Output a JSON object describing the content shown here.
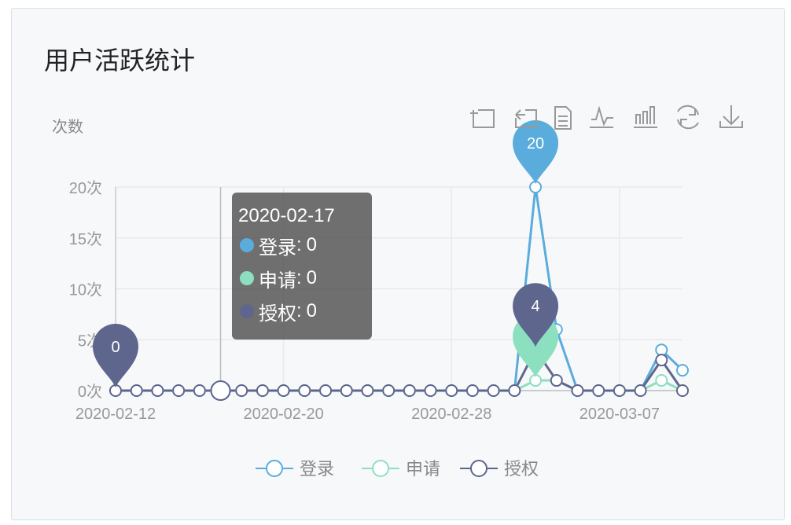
{
  "card": {
    "title": "用户活跃统计"
  },
  "toolbox": [
    "zoom-icon",
    "zoom-reset-icon",
    "data-view-icon",
    "line-chart-icon",
    "bar-chart-icon",
    "restore-icon",
    "download-icon"
  ],
  "tooltip": {
    "date": "2020-02-17",
    "rows": [
      {
        "name": "登录",
        "value": "0",
        "color": "#5aacdc"
      },
      {
        "name": "申请",
        "value": "0",
        "color": "#8ce0c0"
      },
      {
        "name": "授权",
        "value": "0",
        "color": "#5e668e"
      }
    ]
  },
  "chart_data": {
    "type": "line",
    "ylabel": "次数",
    "ylim": [
      0,
      20
    ],
    "yticks": [
      "0次",
      "5次",
      "10次",
      "15次",
      "20次"
    ],
    "xticklabels": [
      "2020-02-12",
      "2020-02-20",
      "2020-02-28",
      "2020-03-07"
    ],
    "x": [
      "2020-02-12",
      "2020-02-13",
      "2020-02-14",
      "2020-02-15",
      "2020-02-16",
      "2020-02-17",
      "2020-02-18",
      "2020-02-19",
      "2020-02-20",
      "2020-02-21",
      "2020-02-22",
      "2020-02-23",
      "2020-02-24",
      "2020-02-25",
      "2020-02-26",
      "2020-02-27",
      "2020-02-28",
      "2020-02-29",
      "2020-03-01",
      "2020-03-02",
      "2020-03-03",
      "2020-03-04",
      "2020-03-05",
      "2020-03-06",
      "2020-03-07",
      "2020-03-08",
      "2020-03-09",
      "2020-03-10"
    ],
    "series": [
      {
        "name": "登录",
        "color": "#5aacdc",
        "values": [
          0,
          0,
          0,
          0,
          0,
          0,
          0,
          0,
          0,
          0,
          0,
          0,
          0,
          0,
          0,
          0,
          0,
          0,
          0,
          0,
          20,
          6,
          0,
          0,
          0,
          0,
          4,
          2
        ]
      },
      {
        "name": "申请",
        "color": "#8ce0c0",
        "values": [
          0,
          0,
          0,
          0,
          0,
          0,
          0,
          0,
          0,
          0,
          0,
          0,
          0,
          0,
          0,
          0,
          0,
          0,
          0,
          0,
          1,
          1,
          0,
          0,
          0,
          0,
          1,
          0
        ]
      },
      {
        "name": "授权",
        "color": "#5e668e",
        "values": [
          0,
          0,
          0,
          0,
          0,
          0,
          0,
          0,
          0,
          0,
          0,
          0,
          0,
          0,
          0,
          0,
          0,
          0,
          0,
          0,
          4,
          1,
          0,
          0,
          0,
          0,
          3,
          0
        ]
      }
    ],
    "mark_points": [
      {
        "series": "登录",
        "date": "2020-03-03",
        "value": 20,
        "label": "20"
      },
      {
        "series": "申请",
        "date": "2020-03-03",
        "value": 1,
        "label": ""
      },
      {
        "series": "授权",
        "date": "2020-03-03",
        "value": 4,
        "label": "4"
      },
      {
        "series": "授权",
        "date": "2020-02-12",
        "value": 0,
        "label": "0"
      }
    ],
    "hover_date": "2020-02-17",
    "legend": "bottom",
    "grid": true
  }
}
